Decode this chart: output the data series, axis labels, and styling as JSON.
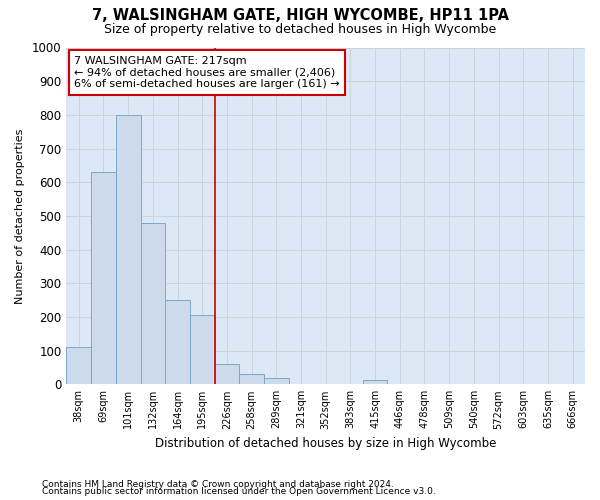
{
  "title": "7, WALSINGHAM GATE, HIGH WYCOMBE, HP11 1PA",
  "subtitle": "Size of property relative to detached houses in High Wycombe",
  "xlabel": "Distribution of detached houses by size in High Wycombe",
  "ylabel": "Number of detached properties",
  "footnote1": "Contains HM Land Registry data © Crown copyright and database right 2024.",
  "footnote2": "Contains public sector information licensed under the Open Government Licence v3.0.",
  "categories": [
    "38sqm",
    "69sqm",
    "101sqm",
    "132sqm",
    "164sqm",
    "195sqm",
    "226sqm",
    "258sqm",
    "289sqm",
    "321sqm",
    "352sqm",
    "383sqm",
    "415sqm",
    "446sqm",
    "478sqm",
    "509sqm",
    "540sqm",
    "572sqm",
    "603sqm",
    "635sqm",
    "666sqm"
  ],
  "values": [
    110,
    630,
    800,
    480,
    250,
    205,
    60,
    30,
    18,
    0,
    0,
    0,
    12,
    0,
    0,
    0,
    0,
    0,
    0,
    0,
    0
  ],
  "bar_color": "#ccdaeb",
  "bar_edge_color": "#7aaac8",
  "grid_color": "#c8d4e0",
  "ax_bg_color": "#dce8f5",
  "background_color": "#ffffff",
  "annotation_text": "7 WALSINGHAM GATE: 217sqm\n← 94% of detached houses are smaller (2,406)\n6% of semi-detached houses are larger (161) →",
  "annotation_box_color": "#ffffff",
  "annotation_box_edge_color": "#cc0000",
  "vline_color": "#cc0000",
  "vline_x": 6.0,
  "ylim": [
    0,
    1000
  ],
  "yticks": [
    0,
    100,
    200,
    300,
    400,
    500,
    600,
    700,
    800,
    900,
    1000
  ]
}
